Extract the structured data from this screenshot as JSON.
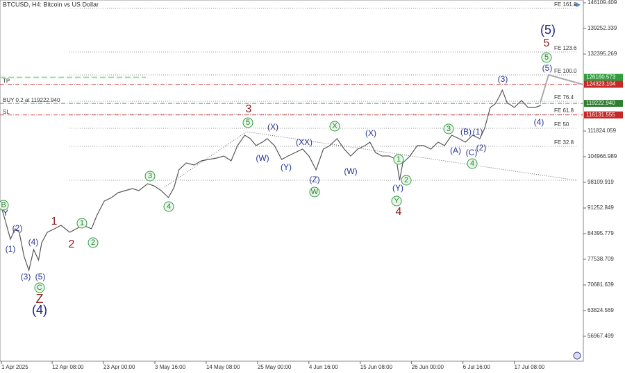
{
  "chart_data": {
    "type": "line",
    "title": "BTCUSD, H4:  Bitcoin vs US Dollar",
    "color": "#555555",
    "x": [
      5,
      10,
      16,
      22,
      27,
      33,
      39,
      45,
      51,
      55,
      62,
      71,
      79,
      90,
      98,
      107,
      117,
      124,
      133,
      142,
      150,
      159,
      168,
      176,
      187,
      195,
      204,
      213,
      220,
      226,
      235,
      245,
      254,
      263,
      273,
      282,
      291,
      299,
      308,
      315,
      322,
      330,
      336,
      345,
      354,
      362,
      371,
      380,
      388,
      397,
      406,
      414,
      423,
      432,
      440,
      449,
      458,
      464,
      471,
      479,
      488,
      497,
      501,
      505,
      514,
      523,
      531,
      540,
      549,
      557,
      566,
      575,
      583,
      592,
      601,
      607,
      614,
      620,
      625,
      629,
      635,
      644,
      653,
      661,
      670,
      677
    ],
    "values": [
      91260,
      87554,
      82922,
      85701,
      84775,
      78289,
      74583,
      80142,
      77362,
      81995,
      84775,
      85701,
      86628,
      84775,
      85701,
      86628,
      85701,
      89407,
      93113,
      94040,
      95337,
      95893,
      96448,
      95893,
      97746,
      97190,
      95893,
      94040,
      96819,
      101452,
      103305,
      102749,
      103860,
      104231,
      104602,
      105158,
      103860,
      107937,
      110714,
      109790,
      107937,
      108864,
      109790,
      107937,
      104231,
      105158,
      106084,
      107011,
      105158,
      101452,
      107011,
      107937,
      109790,
      107011,
      105158,
      107011,
      107937,
      108864,
      106084,
      105158,
      105158,
      104231,
      98672,
      103305,
      105158,
      107937,
      107937,
      107011,
      108864,
      107937,
      110714,
      109790,
      108864,
      110714,
      109790,
      112570,
      118128,
      119055,
      120908,
      122761,
      119426,
      118128,
      119981,
      118128,
      118128,
      118684
    ],
    "xlim": [
      3,
      730
    ],
    "xticks": [
      {
        "value": 0,
        "label": "1 Apr 2025"
      },
      {
        "value": 68,
        "label": "12 Apr 08:00"
      },
      {
        "value": 132,
        "label": "23 Apr 00:00"
      },
      {
        "value": 196,
        "label": "3 May 16:00"
      },
      {
        "value": 260,
        "label": "14 May 08:00"
      },
      {
        "value": 324,
        "label": "25 May 00:00"
      },
      {
        "value": 388,
        "label": "4 Jun 16:00"
      },
      {
        "value": 452,
        "label": "15 Jun 08:00"
      },
      {
        "value": 516,
        "label": "26 Jun 00:00"
      },
      {
        "value": 580,
        "label": "6 Jul 16:00"
      },
      {
        "value": 644,
        "label": "17 Jul 08:00"
      }
    ],
    "ylim": [
      50297,
      146850
    ],
    "yticks": [
      146109.409,
      139252.339,
      132395.269,
      111824.059,
      104966.989,
      98109.919,
      91252.849,
      84395.779,
      77538.709,
      70681.639,
      63824.569,
      56967.499
    ],
    "fib_levels": [
      {
        "label": "FE 161.8",
        "value": 144626
      },
      {
        "label": "FE 123.6",
        "value": 132953
      },
      {
        "label": "FE 100.0",
        "value": 126838
      },
      {
        "label": "FE 76.4",
        "value": 119796
      },
      {
        "label": "FE 61.8",
        "value": 116275
      },
      {
        "label": "FE 50",
        "value": 112570
      },
      {
        "label": "FE 32.8",
        "value": 107752
      },
      {
        "label": null,
        "value": 98672
      }
    ],
    "trade_levels": [
      {
        "label": null,
        "price": 126160.573,
        "color": "#2e9e3e"
      },
      {
        "label": "TP",
        "price": 124323.104,
        "color": "#c62828"
      },
      {
        "label": "BUY 0.2 at 119222.940",
        "price": {
          "value": 119222.94,
          "label": "119222.940"
        },
        "color": "#2e7d32"
      },
      {
        "label": "SL",
        "price": 116131.555,
        "color": "#c62828"
      }
    ],
    "annotations": [
      "B",
      "Y",
      "(2)",
      "(1)",
      "(4)",
      "(3)",
      "(5)",
      "C",
      "Z",
      "(4)",
      "1",
      "2",
      "1",
      "2",
      "3",
      "4",
      "3",
      "5",
      "(X)",
      "(W)",
      "(Y)",
      "(XX)",
      "(Z)",
      "W",
      "X",
      "(W)",
      "(X)",
      "1",
      "2",
      "(Y)",
      "Y",
      "4",
      "3",
      "(B)",
      "(1)",
      "(A)",
      "(C)",
      "(2)",
      "4",
      "(3)",
      "(4)",
      "(5)",
      "5",
      "5",
      "(5)"
    ]
  }
}
